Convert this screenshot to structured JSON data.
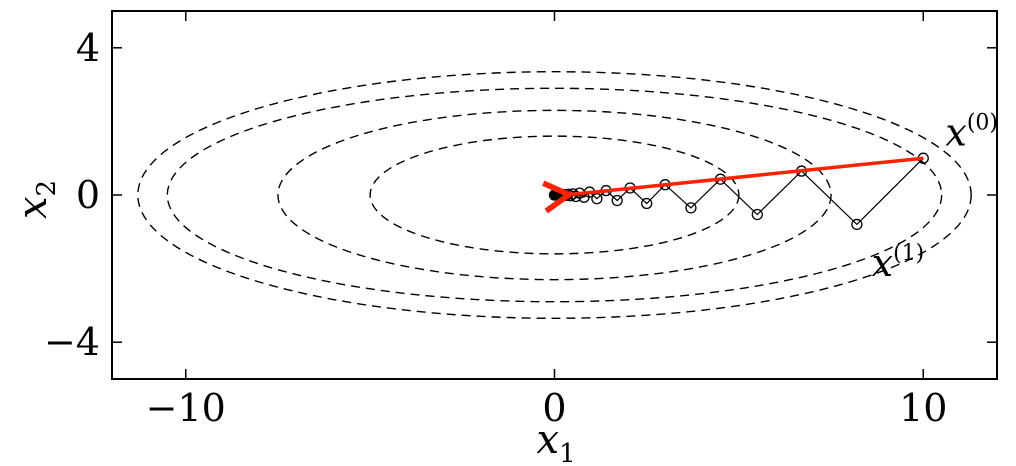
{
  "chart_data": {
    "type": "line",
    "title": "",
    "xlabel": "x",
    "xlabel_sub": "1",
    "ylabel": "x",
    "ylabel_sub": "2",
    "xlim": [
      -12,
      12
    ],
    "ylim": [
      -5,
      5
    ],
    "xticks": [
      -10,
      0,
      10
    ],
    "yticks": [
      -4,
      0,
      4
    ],
    "xtick_labels": [
      "−10",
      "0",
      "10"
    ],
    "ytick_labels": [
      "−4",
      "0",
      "4"
    ],
    "grid": false,
    "legend": "none",
    "contours": [
      {
        "a": 5.0,
        "b": 1.6
      },
      {
        "a": 7.5,
        "b": 2.3
      },
      {
        "a": 10.5,
        "b": 2.9
      },
      {
        "a": 11.3,
        "b": 3.35
      }
    ],
    "series": [
      {
        "style": "iterates",
        "x": [
          10.0,
          8.2,
          6.7,
          5.5,
          4.5,
          3.7,
          3.0,
          2.5,
          2.05,
          1.7,
          1.4,
          1.15,
          0.95,
          0.8,
          0.68,
          0.58,
          0.5,
          0.43,
          0.37,
          0.32,
          0.28,
          0.24,
          0.21,
          0.18,
          0.15,
          0.12,
          0.1,
          0.08,
          0.06,
          0.04,
          0.02,
          0.0
        ],
        "y": [
          1.0,
          -0.8,
          0.65,
          -0.53,
          0.43,
          -0.35,
          0.28,
          -0.23,
          0.19,
          -0.15,
          0.12,
          -0.1,
          0.08,
          -0.06,
          0.05,
          -0.04,
          0.03,
          -0.02,
          0.02,
          -0.01,
          0.01,
          0.0,
          0.0,
          0.0,
          0.0,
          0.0,
          0.0,
          0.0,
          0.0,
          0.0,
          0.0,
          0.0
        ]
      },
      {
        "style": "arrow",
        "x": [
          10.0,
          0.3
        ],
        "y": [
          1.0,
          0.0
        ]
      }
    ],
    "annotations": [
      {
        "text": "x",
        "sup": "(0)",
        "x": 10.6,
        "y": 1.35
      },
      {
        "text": "x",
        "sup": "(1)",
        "x": 8.6,
        "y": -2.2
      }
    ],
    "colors": {
      "contour": "#000000",
      "path": "#000000",
      "arrow": "#ff2200",
      "frame": "#000000"
    }
  }
}
